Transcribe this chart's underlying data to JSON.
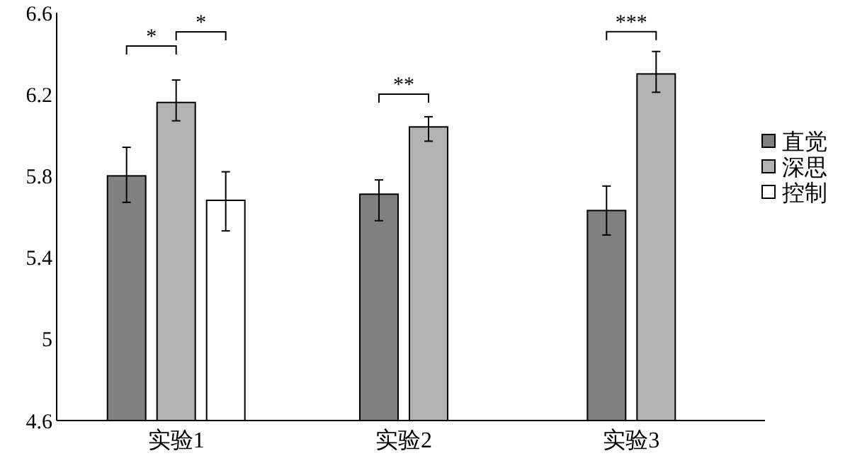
{
  "chart_data": {
    "type": "bar",
    "categories": [
      "实验1",
      "实验2",
      "实验3"
    ],
    "series": [
      {
        "name": "直觉",
        "color": "#808080",
        "values": [
          5.8,
          5.71,
          5.63
        ],
        "errors": [
          [
            5.67,
            5.94
          ],
          [
            5.58,
            5.78
          ],
          [
            5.51,
            5.75
          ]
        ]
      },
      {
        "name": "深思",
        "color": "#b3b3b3",
        "values": [
          6.16,
          6.04,
          6.3
        ],
        "errors": [
          [
            6.07,
            6.27
          ],
          [
            5.97,
            6.09
          ],
          [
            6.21,
            6.41
          ]
        ]
      },
      {
        "name": "控制",
        "color": "#ffffff",
        "values": [
          5.68,
          null,
          null
        ],
        "errors": [
          [
            5.53,
            5.82
          ],
          null,
          null
        ]
      }
    ],
    "ylim": [
      4.6,
      6.6
    ],
    "yticks": [
      4.6,
      5,
      5.4,
      5.8,
      6.2,
      6.6
    ],
    "grid": false,
    "legend": "right",
    "annotations": [
      "*",
      "*",
      "**",
      "***"
    ]
  }
}
